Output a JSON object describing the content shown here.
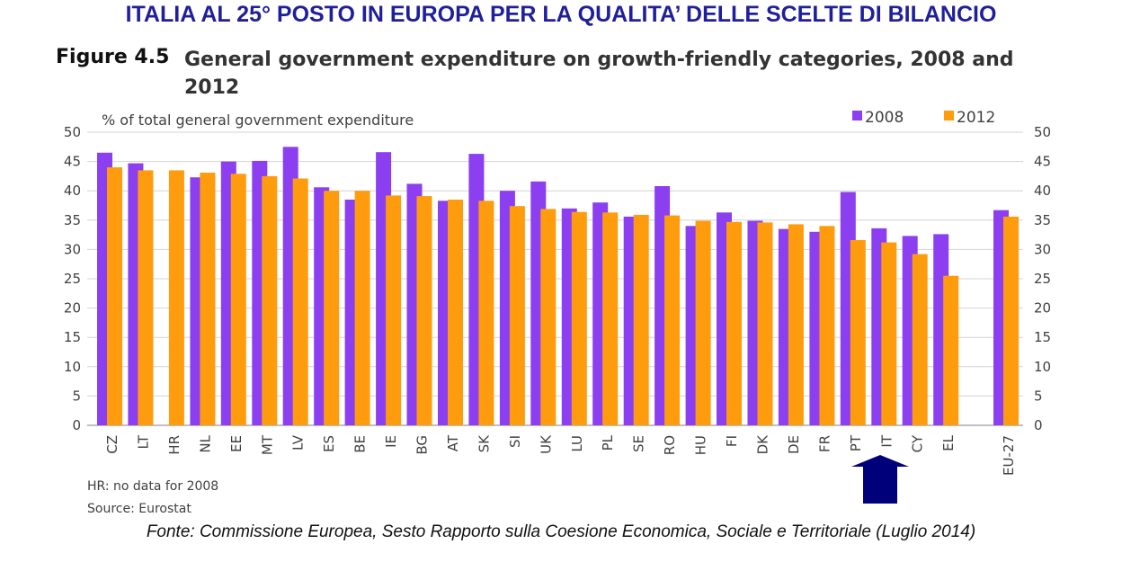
{
  "headline": "ITALIA AL 25° POSTO IN EUROPA PER LA QUALITA’ DELLE SCELTE DI BILANCIO",
  "figure_label": "Figure 4.5",
  "figure_title": "General government expenditure on growth-friendly categories, 2008 and 2012",
  "footnotes": [
    "HR: no data for 2008",
    "Source: Eurostat"
  ],
  "source_line": "Fonte: Commissione Europea, Sesto Rapporto sulla Coesione Economica, Sociale e Territoriale (Luglio 2014)",
  "colors": {
    "2008": "#8c3ff0",
    "2012": "#ff9c0e",
    "arrow": "#00007a",
    "grid": "#d4d4d4",
    "axis": "#808080",
    "text": "#404040"
  },
  "chart_data": {
    "type": "bar",
    "ylabel": "% of total general government expenditure",
    "ylim": [
      0,
      50
    ],
    "yticks": [
      0,
      5,
      10,
      15,
      20,
      25,
      30,
      35,
      40,
      45,
      50
    ],
    "grid": true,
    "legend_position": "top-right",
    "categories": [
      "CZ",
      "LT",
      "HR",
      "NL",
      "EE",
      "MT",
      "LV",
      "ES",
      "BE",
      "IE",
      "BG",
      "AT",
      "SK",
      "SI",
      "UK",
      "LU",
      "PL",
      "SE",
      "RO",
      "HU",
      "FI",
      "DK",
      "DE",
      "FR",
      "PT",
      "IT",
      "CY",
      "EL",
      "EU-27"
    ],
    "series": [
      {
        "name": "2008",
        "values": [
          46.5,
          44.7,
          null,
          42.3,
          45.0,
          45.1,
          47.5,
          40.6,
          38.5,
          46.6,
          41.2,
          38.3,
          46.3,
          40.0,
          41.6,
          37.0,
          38.0,
          35.6,
          40.8,
          34.0,
          36.3,
          34.9,
          33.5,
          33.0,
          39.8,
          33.6,
          32.3,
          32.6,
          36.7
        ]
      },
      {
        "name": "2012",
        "values": [
          44.0,
          43.5,
          43.5,
          43.1,
          42.9,
          42.5,
          42.1,
          40.0,
          40.0,
          39.2,
          39.1,
          38.5,
          38.3,
          37.4,
          36.9,
          36.4,
          36.3,
          35.9,
          35.8,
          34.9,
          34.7,
          34.6,
          34.3,
          34.0,
          31.6,
          31.2,
          29.2,
          25.5,
          35.6
        ]
      }
    ],
    "highlight_category": "IT"
  }
}
